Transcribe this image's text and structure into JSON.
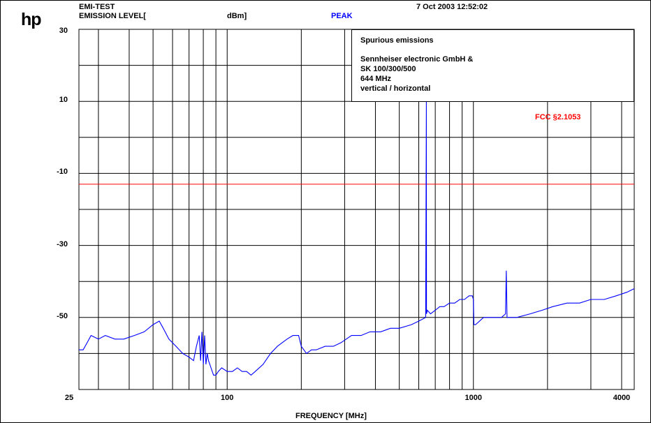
{
  "header": {
    "logo": "hp",
    "test_name": "EMI-TEST",
    "measure_label": "EMISSION LEVEL[",
    "unit_label": "dBm]",
    "detector": "PEAK",
    "date_time": "7 Oct 2003  12:52:02"
  },
  "info_box": {
    "lines": [
      "Spurious emissions",
      "Sennheiser electronic GmbH &",
      "SK 100/300/500",
      "644 MHz",
      "vertical / horizontal"
    ]
  },
  "limit": {
    "label": "FCC §2.1053",
    "value": -13,
    "color": "#ff0000"
  },
  "colors": {
    "trace": "#0000ff",
    "limit": "#ff0000",
    "grid": "#000000",
    "detector": "#0000ff"
  },
  "chart_data": {
    "type": "line",
    "title": "",
    "xlabel": "FREQUENCY [MHz]",
    "ylabel": "EMISSION LEVEL [dBm]",
    "x_scale": "log",
    "xlim": [
      25,
      4500
    ],
    "ylim": [
      -70,
      30
    ],
    "grid": true,
    "yticks": [
      30,
      10,
      -10,
      -30,
      -50
    ],
    "xticks": [
      25,
      100,
      1000,
      4000
    ],
    "ytick_labels": [
      "30",
      "10",
      "-10",
      "-30",
      "-50"
    ],
    "xtick_labels": [
      "25",
      "100",
      "1000",
      "4000"
    ],
    "series": [
      {
        "name": "",
        "x": [
          25,
          26,
          27,
          28,
          30,
          32,
          35,
          38,
          42,
          46,
          50,
          53,
          55,
          58,
          62,
          66,
          70,
          73,
          75,
          77,
          78,
          79,
          80,
          81,
          82,
          83,
          84,
          85,
          86,
          88,
          90,
          92,
          95,
          100,
          105,
          110,
          115,
          120,
          125,
          130,
          140,
          150,
          160,
          175,
          185,
          195,
          200,
          210,
          220,
          230,
          250,
          270,
          290,
          320,
          350,
          380,
          420,
          460,
          500,
          560,
          600,
          640,
          644,
          645,
          650,
          670,
          700,
          730,
          760,
          800,
          840,
          880,
          920,
          960,
          990,
          1000,
          1005,
          1020,
          1100,
          1200,
          1300,
          1350,
          1360,
          1370,
          1400,
          1500,
          1700,
          1900,
          2100,
          2400,
          2700,
          3000,
          3400,
          3800,
          4200,
          4500
        ],
        "y": [
          -59,
          -59,
          -57,
          -55,
          -56,
          -55,
          -56,
          -56,
          -55,
          -54,
          -52,
          -51,
          -53,
          -56,
          -58,
          -60,
          -61,
          -62,
          -58,
          -55,
          -62,
          -54,
          -63,
          -55,
          -63,
          -60,
          -62,
          -63,
          -64,
          -66,
          -66,
          -65,
          -64,
          -65,
          -65,
          -64,
          -65,
          -65,
          -66,
          -65,
          -63,
          -60,
          -58,
          -56,
          -55,
          -55,
          -58,
          -60,
          -59,
          -59,
          -58,
          -58,
          -57,
          -55,
          -55,
          -54,
          -54,
          -53,
          -53,
          -52,
          -51,
          -50,
          10,
          -49,
          -48,
          -49,
          -48,
          -47,
          -47,
          -46,
          -46,
          -45,
          -45,
          -44,
          -44,
          -45,
          -52,
          -52,
          -50,
          -50,
          -50,
          -49,
          -37,
          -50,
          -50,
          -50,
          -49,
          -48,
          -47,
          -46,
          -46,
          -45,
          -45,
          -44,
          -43,
          -42
        ]
      }
    ]
  }
}
